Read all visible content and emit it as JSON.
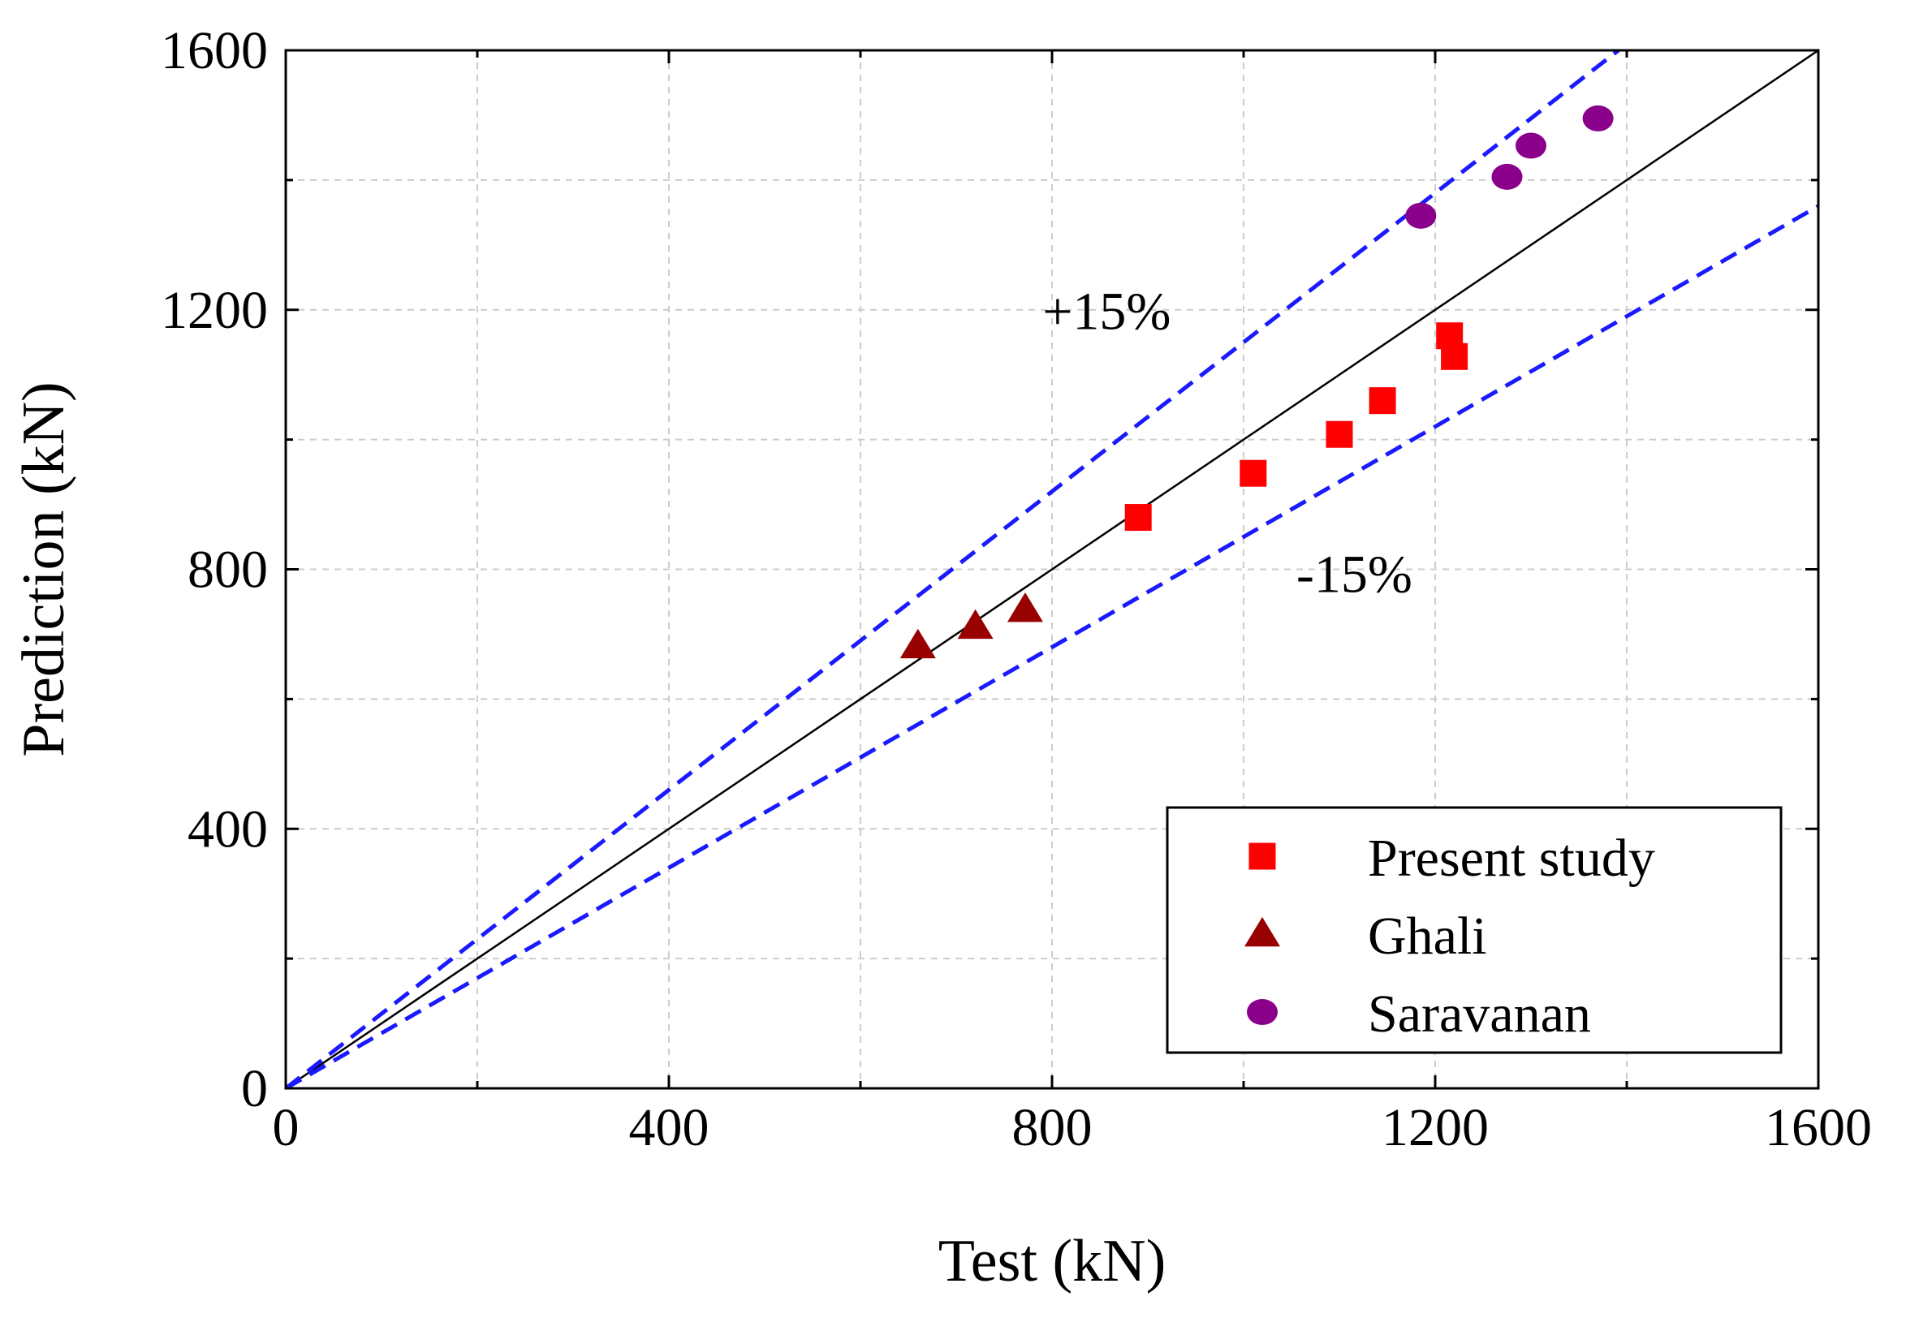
{
  "chart_data": {
    "type": "scatter",
    "title": "",
    "xlabel": "Test (kN)",
    "ylabel": "Prediction (kN)",
    "xlim": [
      0,
      1600
    ],
    "ylim": [
      0,
      1600
    ],
    "xticks": [
      0,
      400,
      800,
      1200,
      1600
    ],
    "yticks": [
      0,
      400,
      800,
      1200,
      1600
    ],
    "minor_step": 200,
    "grid": true,
    "legend_position": "bottom-right",
    "reference_lines": [
      {
        "name": "y = x",
        "slope": 1.0,
        "style": "solid",
        "color": "#000000"
      },
      {
        "name": "+15%",
        "slope": 1.15,
        "style": "dashed",
        "color": "#1a1aff",
        "label": "+15%"
      },
      {
        "name": "-15%",
        "slope": 0.85,
        "style": "dashed",
        "color": "#1a1aff",
        "label": "-15%"
      }
    ],
    "series": [
      {
        "name": "Present study",
        "marker": "square",
        "color": "#ff0000",
        "x": [
          890,
          1010,
          1100,
          1145,
          1215,
          1220
        ],
        "y": [
          880,
          948,
          1008,
          1060,
          1160,
          1128
        ]
      },
      {
        "name": "Ghali",
        "marker": "triangle",
        "color": "#990000",
        "x": [
          660,
          720,
          772
        ],
        "y": [
          682,
          712,
          738
        ]
      },
      {
        "name": "Saravanan",
        "marker": "circle",
        "color": "#8b008b",
        "x": [
          1185,
          1275,
          1300,
          1370
        ],
        "y": [
          1345,
          1405,
          1453,
          1495
        ]
      }
    ]
  }
}
